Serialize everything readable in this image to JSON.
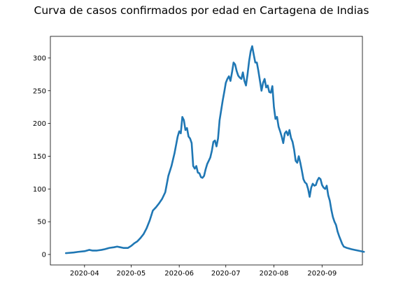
{
  "chart_data": {
    "type": "line",
    "title": "Curva de casos confirmados por edad en Cartagena de Indias",
    "xlabel": "",
    "ylabel": "",
    "x_range": [
      "2020-03-10",
      "2020-09-27"
    ],
    "ylim": [
      -16,
      333
    ],
    "grid": false,
    "legend": "none",
    "x_ticks": [
      "2020-04",
      "2020-05",
      "2020-06",
      "2020-07",
      "2020-08",
      "2020-09"
    ],
    "x_tick_dates": [
      "2020-04-01",
      "2020-05-01",
      "2020-06-01",
      "2020-07-01",
      "2020-08-01",
      "2020-09-01"
    ],
    "y_ticks": [
      0,
      50,
      100,
      150,
      200,
      250,
      300
    ],
    "series": [
      {
        "color": "#1f77b4",
        "points": [
          [
            "2020-03-20",
            2
          ],
          [
            "2020-03-25",
            3
          ],
          [
            "2020-03-28",
            4
          ],
          [
            "2020-04-01",
            5
          ],
          [
            "2020-04-04",
            7
          ],
          [
            "2020-04-06",
            6
          ],
          [
            "2020-04-09",
            6
          ],
          [
            "2020-04-12",
            7
          ],
          [
            "2020-04-14",
            8
          ],
          [
            "2020-04-17",
            10
          ],
          [
            "2020-04-20",
            11
          ],
          [
            "2020-04-22",
            12
          ],
          [
            "2020-04-24",
            11
          ],
          [
            "2020-04-26",
            10
          ],
          [
            "2020-04-29",
            10
          ],
          [
            "2020-05-01",
            13
          ],
          [
            "2020-05-03",
            17
          ],
          [
            "2020-05-05",
            20
          ],
          [
            "2020-05-07",
            25
          ],
          [
            "2020-05-09",
            31
          ],
          [
            "2020-05-11",
            40
          ],
          [
            "2020-05-13",
            52
          ],
          [
            "2020-05-15",
            67
          ],
          [
            "2020-05-17",
            72
          ],
          [
            "2020-05-19",
            78
          ],
          [
            "2020-05-21",
            85
          ],
          [
            "2020-05-23",
            95
          ],
          [
            "2020-05-25",
            120
          ],
          [
            "2020-05-27",
            135
          ],
          [
            "2020-05-29",
            155
          ],
          [
            "2020-05-31",
            180
          ],
          [
            "2020-06-01",
            188
          ],
          [
            "2020-06-02",
            185
          ],
          [
            "2020-06-03",
            210
          ],
          [
            "2020-06-04",
            205
          ],
          [
            "2020-06-05",
            190
          ],
          [
            "2020-06-06",
            193
          ],
          [
            "2020-06-07",
            180
          ],
          [
            "2020-06-08",
            177
          ],
          [
            "2020-06-09",
            170
          ],
          [
            "2020-06-10",
            135
          ],
          [
            "2020-06-11",
            131
          ],
          [
            "2020-06-12",
            135
          ],
          [
            "2020-06-13",
            125
          ],
          [
            "2020-06-14",
            124
          ],
          [
            "2020-06-15",
            118
          ],
          [
            "2020-06-16",
            117
          ],
          [
            "2020-06-17",
            120
          ],
          [
            "2020-06-18",
            130
          ],
          [
            "2020-06-19",
            138
          ],
          [
            "2020-06-20",
            143
          ],
          [
            "2020-06-21",
            148
          ],
          [
            "2020-06-22",
            158
          ],
          [
            "2020-06-23",
            172
          ],
          [
            "2020-06-24",
            174
          ],
          [
            "2020-06-25",
            165
          ],
          [
            "2020-06-26",
            177
          ],
          [
            "2020-06-27",
            205
          ],
          [
            "2020-06-28",
            220
          ],
          [
            "2020-06-29",
            235
          ],
          [
            "2020-06-30",
            248
          ],
          [
            "2020-07-01",
            262
          ],
          [
            "2020-07-02",
            268
          ],
          [
            "2020-07-03",
            272
          ],
          [
            "2020-07-04",
            265
          ],
          [
            "2020-07-05",
            278
          ],
          [
            "2020-07-06",
            293
          ],
          [
            "2020-07-07",
            290
          ],
          [
            "2020-07-08",
            280
          ],
          [
            "2020-07-09",
            273
          ],
          [
            "2020-07-10",
            270
          ],
          [
            "2020-07-11",
            268
          ],
          [
            "2020-07-12",
            278
          ],
          [
            "2020-07-13",
            265
          ],
          [
            "2020-07-14",
            258
          ],
          [
            "2020-07-15",
            275
          ],
          [
            "2020-07-16",
            295
          ],
          [
            "2020-07-17",
            310
          ],
          [
            "2020-07-18",
            318
          ],
          [
            "2020-07-19",
            305
          ],
          [
            "2020-07-20",
            293
          ],
          [
            "2020-07-21",
            293
          ],
          [
            "2020-07-22",
            280
          ],
          [
            "2020-07-23",
            265
          ],
          [
            "2020-07-24",
            250
          ],
          [
            "2020-07-25",
            262
          ],
          [
            "2020-07-26",
            268
          ],
          [
            "2020-07-27",
            255
          ],
          [
            "2020-07-28",
            258
          ],
          [
            "2020-07-29",
            248
          ],
          [
            "2020-07-30",
            247
          ],
          [
            "2020-07-31",
            257
          ],
          [
            "2020-08-01",
            225
          ],
          [
            "2020-08-02",
            207
          ],
          [
            "2020-08-03",
            210
          ],
          [
            "2020-08-04",
            195
          ],
          [
            "2020-08-05",
            188
          ],
          [
            "2020-08-06",
            180
          ],
          [
            "2020-08-07",
            170
          ],
          [
            "2020-08-08",
            185
          ],
          [
            "2020-08-09",
            188
          ],
          [
            "2020-08-10",
            182
          ],
          [
            "2020-08-11",
            190
          ],
          [
            "2020-08-12",
            178
          ],
          [
            "2020-08-13",
            172
          ],
          [
            "2020-08-14",
            160
          ],
          [
            "2020-08-15",
            143
          ],
          [
            "2020-08-16",
            140
          ],
          [
            "2020-08-17",
            150
          ],
          [
            "2020-08-18",
            140
          ],
          [
            "2020-08-19",
            128
          ],
          [
            "2020-08-20",
            115
          ],
          [
            "2020-08-21",
            110
          ],
          [
            "2020-08-22",
            108
          ],
          [
            "2020-08-23",
            100
          ],
          [
            "2020-08-24",
            88
          ],
          [
            "2020-08-25",
            102
          ],
          [
            "2020-08-26",
            108
          ],
          [
            "2020-08-27",
            105
          ],
          [
            "2020-08-28",
            106
          ],
          [
            "2020-08-29",
            113
          ],
          [
            "2020-08-30",
            117
          ],
          [
            "2020-08-31",
            115
          ],
          [
            "2020-09-01",
            106
          ],
          [
            "2020-09-02",
            102
          ],
          [
            "2020-09-03",
            100
          ],
          [
            "2020-09-04",
            105
          ],
          [
            "2020-09-05",
            90
          ],
          [
            "2020-09-06",
            82
          ],
          [
            "2020-09-07",
            68
          ],
          [
            "2020-09-08",
            57
          ],
          [
            "2020-09-09",
            50
          ],
          [
            "2020-09-10",
            45
          ],
          [
            "2020-09-11",
            35
          ],
          [
            "2020-09-12",
            28
          ],
          [
            "2020-09-13",
            22
          ],
          [
            "2020-09-14",
            16
          ],
          [
            "2020-09-15",
            12
          ],
          [
            "2020-09-17",
            10
          ],
          [
            "2020-09-20",
            8
          ],
          [
            "2020-09-24",
            6
          ],
          [
            "2020-09-28",
            4
          ]
        ]
      }
    ]
  }
}
